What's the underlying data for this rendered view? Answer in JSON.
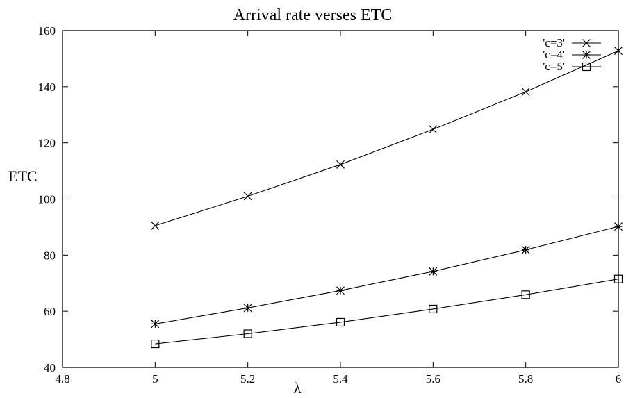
{
  "chart_data": {
    "type": "line",
    "title": "Arrival rate verses ETC",
    "xlabel": "λ",
    "ylabel": "ETC",
    "xlim": [
      4.8,
      6
    ],
    "ylim": [
      40,
      160
    ],
    "x_ticks": [
      "4.8",
      "5",
      "5.2",
      "5.4",
      "5.6",
      "5.8",
      "6"
    ],
    "y_ticks": [
      "40",
      "60",
      "80",
      "100",
      "120",
      "140",
      "160"
    ],
    "grid": false,
    "legend_position": "top-right",
    "line_color": "#000000",
    "x": [
      5.0,
      5.2,
      5.4,
      5.6,
      5.8,
      6.0
    ],
    "series": [
      {
        "name": "'c=3'",
        "marker": "x",
        "values": [
          90.5,
          101.0,
          112.3,
          124.8,
          138.2,
          152.8
        ]
      },
      {
        "name": "'c=4'",
        "marker": "star",
        "values": [
          55.5,
          61.2,
          67.4,
          74.2,
          81.9,
          90.2
        ]
      },
      {
        "name": "'c=5'",
        "marker": "square",
        "values": [
          48.4,
          52.0,
          56.1,
          60.8,
          65.9,
          71.5
        ]
      }
    ]
  }
}
